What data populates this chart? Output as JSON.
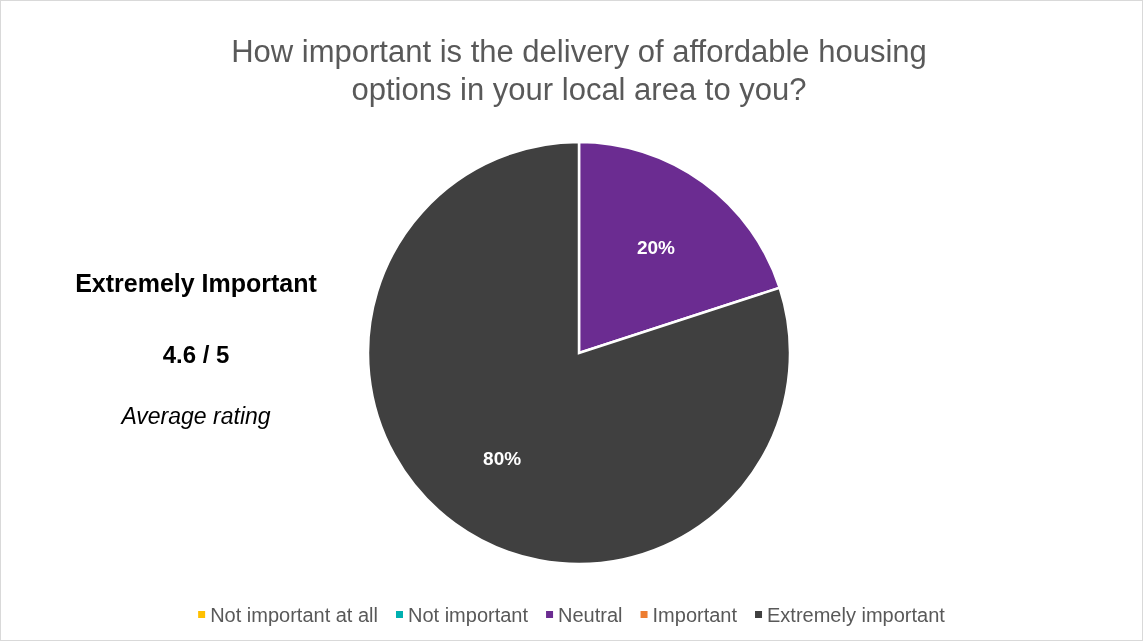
{
  "chart_data": {
    "type": "pie",
    "title": "How important is the delivery of affordable housing options in your local area to you?",
    "categories": [
      "Not important at all",
      "Not important",
      "Neutral",
      "Important",
      "Extremely important"
    ],
    "values": [
      0,
      0,
      20,
      0,
      80
    ],
    "colors": [
      "#ffc000",
      "#00b0b0",
      "#6b2c91",
      "#ed7d31",
      "#404040"
    ],
    "value_labels": [
      null,
      null,
      "20%",
      null,
      "80%"
    ],
    "legend": "bottom",
    "annotations": [
      "Extremely Important",
      "4.6 / 5",
      "Average rating"
    ]
  }
}
